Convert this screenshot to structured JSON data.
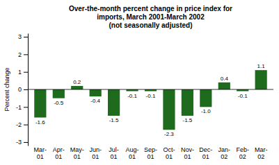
{
  "chart_data": {
    "type": "bar",
    "title": "Over-the-month percent change in price index for\nimports, March 2001-March 2002\n(not seasonally adjusted)",
    "y_label": "Percent change",
    "categories": [
      "Mar-\n01",
      "Apr-\n01",
      "May-\n01",
      "Jun-\n01",
      "Jul-\n01",
      "Aug-\n01",
      "Sep-\n01",
      "Oct-\n01",
      "Nov-\n01",
      "Dec-\n01",
      "Jan-\n02",
      "Feb-\n02",
      "Mar-\n02"
    ],
    "values": [
      -1.6,
      -0.5,
      0.2,
      -0.4,
      -1.5,
      -0.1,
      -0.1,
      -2.3,
      -1.5,
      -1.0,
      0.4,
      -0.1,
      1.1
    ],
    "value_labels": [
      "-1.6",
      "-0.5",
      "0.2",
      "-0.4",
      "-1.5",
      "-0.1",
      "-0.1",
      "-2.3",
      "-1.5",
      "-1.0",
      "0.4",
      "-0.1",
      "1.1"
    ],
    "data_labels": true,
    "color": "#1e6b1e",
    "ylim": [
      -3.2,
      3.2
    ],
    "yticks": [
      -3,
      -2,
      -1,
      0,
      1,
      2,
      3
    ],
    "grid": false
  }
}
